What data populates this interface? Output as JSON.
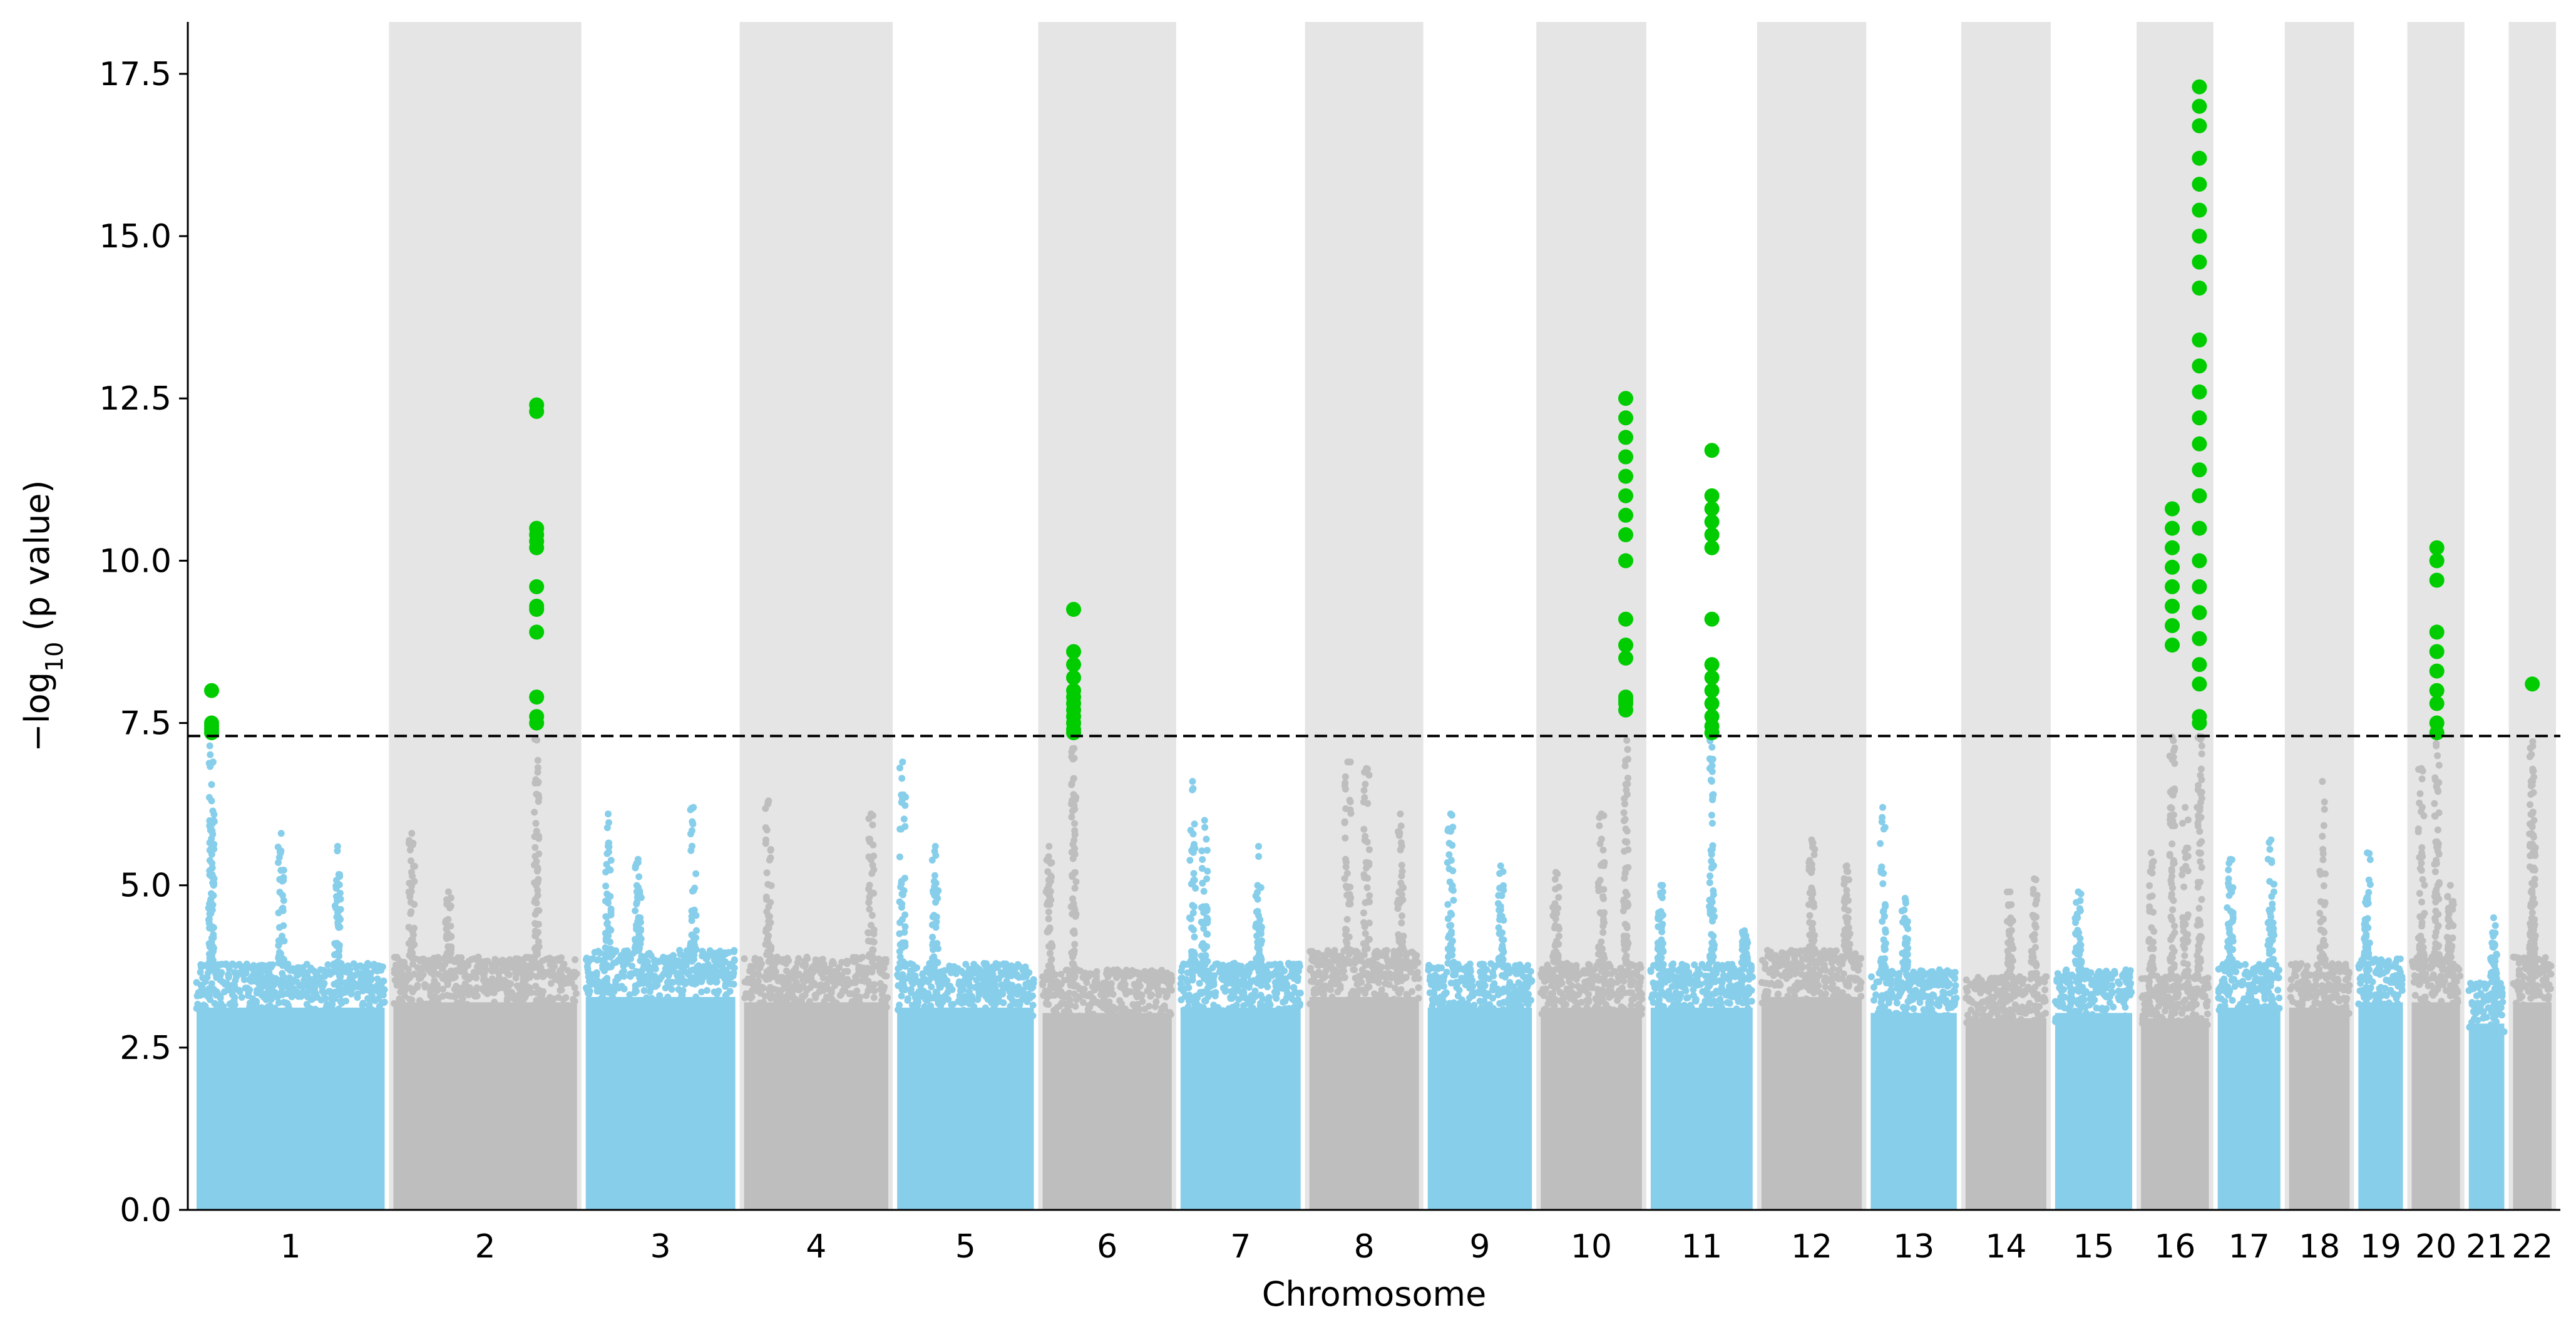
{
  "chart_data": {
    "type": "scatter",
    "title": "",
    "xlabel": "Chromosome",
    "ylabel": "−log10 (p value)",
    "ylabel_parts": {
      "prefix": "−log",
      "subscript": "10",
      "suffix": " (p value)"
    },
    "ylim": [
      0,
      18.3
    ],
    "yticks": [
      0.0,
      2.5,
      5.0,
      7.5,
      10.0,
      12.5,
      15.0,
      17.5
    ],
    "ytick_labels": [
      "0.0",
      "2.5",
      "5.0",
      "7.5",
      "10.0",
      "12.5",
      "15.0",
      "17.5"
    ],
    "significance_threshold": 7.3,
    "colors": {
      "odd_chromosome": "#87CEEB",
      "even_chromosome": "#BEBEBE",
      "significant": "#00CC00",
      "band_shading": "#E5E5E5",
      "threshold_line": "#000000"
    },
    "chromosomes": [
      {
        "label": "1",
        "length_mb": 249,
        "background_max": 3.8,
        "peaks": [
          {
            "pos": 0.08,
            "max": 6.3
          },
          {
            "pos": 0.45,
            "max": 5.8
          },
          {
            "pos": 0.75,
            "max": 5.6
          }
        ],
        "significant_peaks": [
          {
            "pos": 0.08,
            "values": [
              8.0,
              7.5,
              7.45,
              7.4,
              7.35
            ]
          }
        ]
      },
      {
        "label": "2",
        "length_mb": 243,
        "background_max": 3.9,
        "peaks": [
          {
            "pos": 0.1,
            "max": 5.8
          },
          {
            "pos": 0.3,
            "max": 4.9
          }
        ],
        "significant_peaks": [
          {
            "pos": 0.78,
            "values": [
              12.4,
              12.3,
              10.5,
              10.4,
              10.3,
              10.2,
              9.6,
              9.3,
              9.25,
              8.9,
              7.9,
              7.6,
              7.5
            ]
          }
        ]
      },
      {
        "label": "3",
        "length_mb": 198,
        "background_max": 4.0,
        "peaks": [
          {
            "pos": 0.15,
            "max": 6.1
          },
          {
            "pos": 0.35,
            "max": 5.4
          },
          {
            "pos": 0.72,
            "max": 6.2
          }
        ],
        "significant_peaks": []
      },
      {
        "label": "4",
        "length_mb": 191,
        "background_max": 3.9,
        "peaks": [
          {
            "pos": 0.17,
            "max": 6.3
          },
          {
            "pos": 0.88,
            "max": 6.1
          }
        ],
        "significant_peaks": []
      },
      {
        "label": "5",
        "length_mb": 181,
        "background_max": 3.8,
        "peaks": [
          {
            "pos": 0.04,
            "max": 6.9
          },
          {
            "pos": 0.28,
            "max": 5.6
          }
        ],
        "significant_peaks": []
      },
      {
        "label": "6",
        "length_mb": 171,
        "background_max": 3.7,
        "peaks": [
          {
            "pos": 0.05,
            "max": 5.6
          }
        ],
        "significant_peaks": [
          {
            "pos": 0.24,
            "values": [
              9.25,
              8.6,
              8.4,
              8.2,
              8.0,
              7.9,
              7.8,
              7.7,
              7.6,
              7.5,
              7.4,
              7.35
            ]
          }
        ]
      },
      {
        "label": "7",
        "length_mb": 159,
        "background_max": 3.8,
        "peaks": [
          {
            "pos": 0.1,
            "max": 6.6
          },
          {
            "pos": 0.2,
            "max": 6.0
          },
          {
            "pos": 0.65,
            "max": 5.6
          }
        ],
        "significant_peaks": []
      },
      {
        "label": "8",
        "length_mb": 145,
        "background_max": 4.0,
        "peaks": [
          {
            "pos": 0.35,
            "max": 6.9
          },
          {
            "pos": 0.52,
            "max": 6.8
          },
          {
            "pos": 0.83,
            "max": 6.1
          }
        ],
        "significant_peaks": []
      },
      {
        "label": "9",
        "length_mb": 138,
        "background_max": 3.8,
        "peaks": [
          {
            "pos": 0.22,
            "max": 6.1
          },
          {
            "pos": 0.7,
            "max": 5.3
          }
        ],
        "significant_peaks": []
      },
      {
        "label": "10",
        "length_mb": 134,
        "background_max": 3.8,
        "peaks": [
          {
            "pos": 0.15,
            "max": 5.2
          },
          {
            "pos": 0.6,
            "max": 6.1
          }
        ],
        "significant_peaks": [
          {
            "pos": 0.84,
            "values": [
              12.5,
              12.2,
              11.9,
              11.6,
              11.3,
              11.0,
              10.7,
              10.4,
              10.0,
              9.1,
              8.7,
              8.5,
              7.9,
              7.85,
              7.8,
              7.7
            ]
          }
        ]
      },
      {
        "label": "11",
        "length_mb": 135,
        "background_max": 3.8,
        "peaks": [
          {
            "pos": 0.1,
            "max": 5.0
          },
          {
            "pos": 0.92,
            "max": 4.3
          }
        ],
        "significant_peaks": [
          {
            "pos": 0.6,
            "values": [
              11.7,
              11.0,
              10.8,
              10.6,
              10.4,
              10.2,
              9.1,
              8.4,
              8.2,
              8.0,
              7.8,
              7.6,
              7.45,
              7.35
            ]
          }
        ]
      },
      {
        "label": "12",
        "length_mb": 133,
        "background_max": 4.0,
        "peaks": [
          {
            "pos": 0.5,
            "max": 5.7
          },
          {
            "pos": 0.85,
            "max": 5.3
          }
        ],
        "significant_peaks": []
      },
      {
        "label": "13",
        "length_mb": 114,
        "background_max": 3.7,
        "peaks": [
          {
            "pos": 0.14,
            "max": 6.2
          },
          {
            "pos": 0.4,
            "max": 4.8
          }
        ],
        "significant_peaks": []
      },
      {
        "label": "14",
        "length_mb": 107,
        "background_max": 3.6,
        "peaks": [
          {
            "pos": 0.55,
            "max": 4.9
          },
          {
            "pos": 0.85,
            "max": 5.1
          }
        ],
        "significant_peaks": []
      },
      {
        "label": "15",
        "length_mb": 102,
        "background_max": 3.7,
        "peaks": [
          {
            "pos": 0.3,
            "max": 4.9
          }
        ],
        "significant_peaks": []
      },
      {
        "label": "16",
        "length_mb": 90,
        "background_max": 3.6,
        "peaks": [
          {
            "pos": 0.15,
            "max": 5.5
          },
          {
            "pos": 0.65,
            "max": 6.2
          }
        ],
        "significant_peaks": [
          {
            "pos": 0.46,
            "values": [
              10.8,
              10.5,
              10.2,
              9.9,
              9.6,
              9.3,
              9.0,
              8.7
            ]
          },
          {
            "pos": 0.86,
            "values": [
              17.3,
              17.0,
              16.7,
              16.2,
              15.8,
              15.4,
              15.0,
              14.6,
              14.2,
              13.4,
              13.0,
              12.6,
              12.2,
              11.8,
              11.4,
              11.0,
              10.5,
              10.0,
              9.6,
              9.2,
              8.8,
              8.4,
              8.1,
              7.6,
              7.5
            ]
          }
        ]
      },
      {
        "label": "17",
        "length_mb": 83,
        "background_max": 3.8,
        "peaks": [
          {
            "pos": 0.2,
            "max": 5.4
          },
          {
            "pos": 0.85,
            "max": 5.7
          }
        ],
        "significant_peaks": []
      },
      {
        "label": "18",
        "length_mb": 80,
        "background_max": 3.8,
        "peaks": [
          {
            "pos": 0.55,
            "max": 6.6
          }
        ],
        "significant_peaks": []
      },
      {
        "label": "19",
        "length_mb": 59,
        "background_max": 3.9,
        "peaks": [
          {
            "pos": 0.2,
            "max": 5.5
          }
        ],
        "significant_peaks": []
      },
      {
        "label": "20",
        "length_mb": 64,
        "background_max": 3.9,
        "peaks": [
          {
            "pos": 0.2,
            "max": 6.8
          },
          {
            "pos": 0.8,
            "max": 5.0
          }
        ],
        "significant_peaks": [
          {
            "pos": 0.52,
            "values": [
              10.2,
              10.0,
              9.7,
              8.9,
              8.6,
              8.3,
              8.0,
              7.8,
              7.5,
              7.35
            ]
          }
        ]
      },
      {
        "label": "21",
        "length_mb": 47,
        "background_max": 3.5,
        "peaks": [
          {
            "pos": 0.7,
            "max": 4.5
          }
        ],
        "significant_peaks": []
      },
      {
        "label": "22",
        "length_mb": 51,
        "background_max": 3.9,
        "peaks": [
          {
            "pos": 0.5,
            "max": 5.9
          }
        ],
        "significant_peaks": [
          {
            "pos": 0.5,
            "values": [
              8.1
            ]
          }
        ]
      }
    ]
  }
}
